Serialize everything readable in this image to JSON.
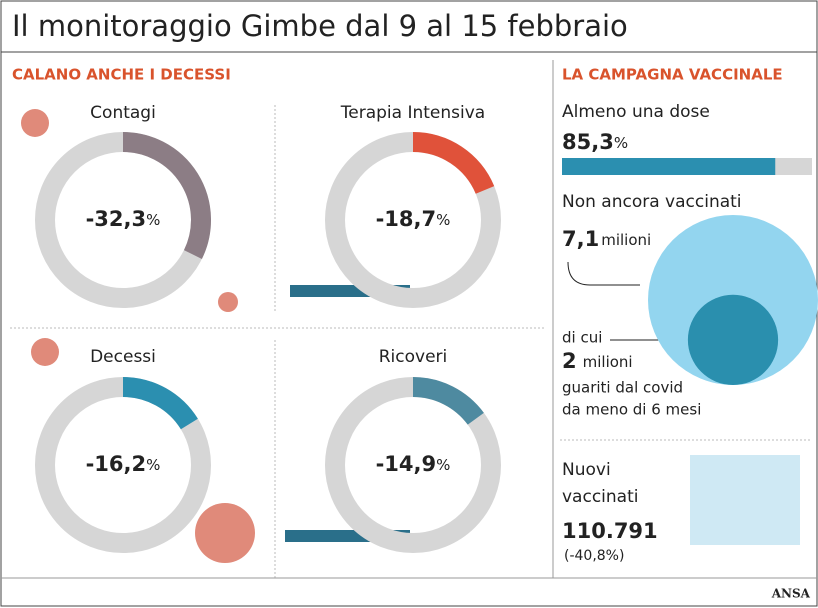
{
  "title": "Il monitoraggio Gimbe dal 9 al 15 febbraio",
  "left": {
    "heading": "CALANO ANCHE I DECESSI",
    "unit": "%",
    "panels": [
      {
        "label": "Contagi",
        "value": -32.3,
        "value_label": "-32,3",
        "color": "#8c7d85"
      },
      {
        "label": "Terapia Intensiva",
        "value": -18.7,
        "value_label": "-18,7",
        "color": "#e0523a"
      },
      {
        "label": "Decessi",
        "value": -16.2,
        "value_label": "-16,2",
        "color": "#2b8fb0"
      },
      {
        "label": "Ricoveri",
        "value": -14.9,
        "value_label": "-14,9",
        "color": "#4e8aa0"
      }
    ]
  },
  "right": {
    "heading": "LA CAMPAGNA VACCINALE",
    "dose": {
      "label": "Almeno una dose",
      "value": 85.3,
      "value_label": "85,3",
      "unit": "%",
      "color": "#2b8fb0"
    },
    "unvaccinated": {
      "label": "Non ancora vaccinati",
      "value": 7.1,
      "value_label": "7,1",
      "unit": "milioni",
      "color": "#93d5ef"
    },
    "recovered": {
      "prefix": "di cui",
      "value": 2,
      "unit": "milioni",
      "lines": [
        "guariti dal covid",
        "da meno di 6 mesi"
      ],
      "color": "#2a8fae"
    },
    "new": {
      "lines": [
        "Nuovi",
        "vaccinati"
      ],
      "value": 110791,
      "value_label": "110.791",
      "change": {
        "value": -40.8,
        "label": "(-40,8%)"
      }
    }
  },
  "source": "ANSA"
}
